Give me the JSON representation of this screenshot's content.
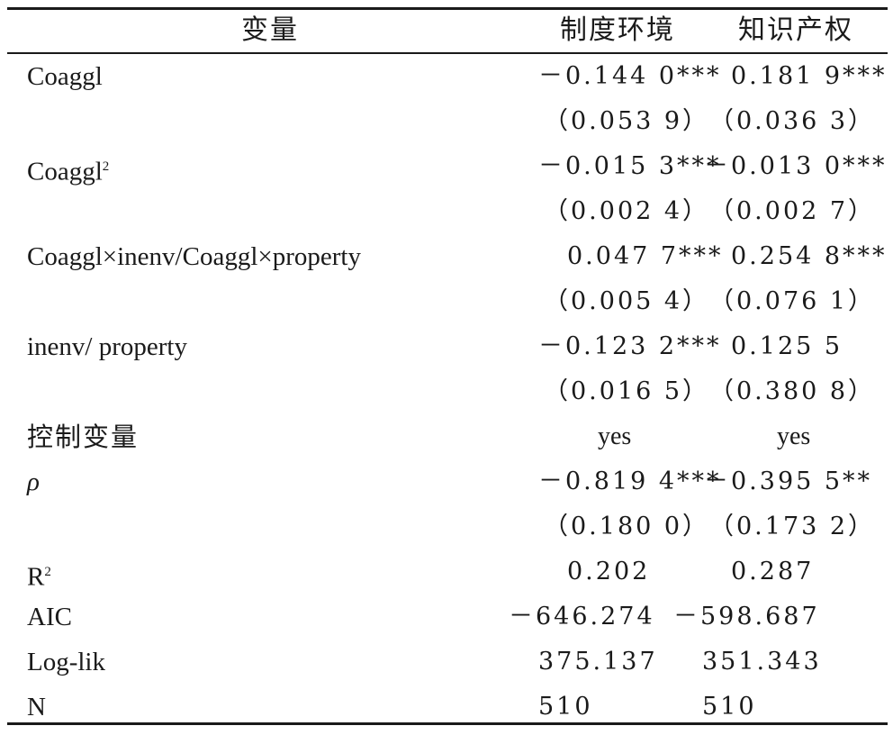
{
  "header": {
    "col0": "变量",
    "col1": "制度环境",
    "col2": "知识产权"
  },
  "rows": [
    {
      "label": "Coaggl",
      "sup": "",
      "v1": "－0.144 0***",
      "v2": "0.181 9***"
    },
    {
      "label": "",
      "sup": "",
      "v1": "（0.053 9）",
      "v2": "（0.036 3）"
    },
    {
      "label": "Coaggl",
      "sup": "2",
      "v1": "－0.015 3***",
      "v2": "－0.013 0***"
    },
    {
      "label": "",
      "sup": "",
      "v1": "（0.002 4）",
      "v2": "（0.002 7）"
    },
    {
      "label": "Coaggl×inenv/Coaggl×property",
      "sup": "",
      "v1": "0.047 7***",
      "v2": "0.254 8***"
    },
    {
      "label": "",
      "sup": "",
      "v1": "（0.005 4）",
      "v2": "（0.076 1）"
    },
    {
      "label": "inenv/ property",
      "sup": "",
      "v1": "－0.123 2***",
      "v2": "0.125 5"
    },
    {
      "label": "",
      "sup": "",
      "v1": "（0.016 5）",
      "v2": "（0.380 8）"
    },
    {
      "label": "控制变量",
      "sup": "",
      "v1": "yes",
      "v2": "yes"
    },
    {
      "label": "ρ",
      "sup": "",
      "v1": "－0.819 4***",
      "v2": "－0.395 5**"
    },
    {
      "label": "",
      "sup": "",
      "v1": "（0.180 0）",
      "v2": "（0.173 2）"
    },
    {
      "label": "R",
      "sup": "2",
      "v1": "0.202",
      "v2": "0.287"
    },
    {
      "label": "AIC",
      "sup": "",
      "v1": "－646.274",
      "v2": "－598.687"
    },
    {
      "label": "Log-lik",
      "sup": "",
      "v1": "375.137",
      "v2": "351.343"
    },
    {
      "label": "N",
      "sup": "",
      "v1": "510",
      "v2": "510"
    }
  ]
}
